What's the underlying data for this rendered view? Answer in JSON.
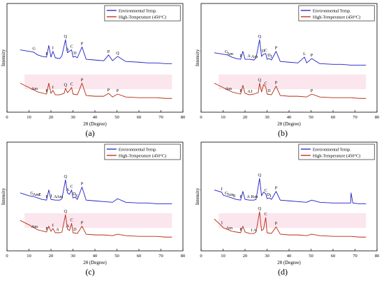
{
  "figure": {
    "x_axis_label": "2θ (Degree)",
    "y_axis_label": "Intensity",
    "x_ticks": [
      0,
      10,
      20,
      30,
      40,
      50,
      60,
      70,
      80
    ],
    "colors": {
      "environmental": "#1f1fc8",
      "high_temperature": "#b8280f"
    }
  },
  "chart_data": [
    {
      "type": "line",
      "panel": "(a)",
      "xlabel": "2θ (Degree)",
      "ylabel": "Intensity",
      "xlim": [
        0,
        80
      ],
      "legend_placement": "top-right",
      "series": [
        {
          "name": "Environmental Temp.",
          "x": [
            6,
            10,
            12,
            14,
            16,
            18,
            19,
            20,
            20.9,
            22,
            24,
            25,
            26.6,
            27.5,
            28.4,
            29.4,
            30,
            31,
            32,
            34.1,
            36,
            40,
            44,
            46.2,
            48,
            50.3,
            54,
            60,
            64,
            68,
            72,
            75
          ],
          "values": [
            86,
            84,
            83,
            79,
            77,
            76,
            92,
            76,
            84,
            75,
            74,
            78,
            100,
            82,
            84,
            86,
            76,
            77,
            75,
            90,
            73,
            72,
            71,
            79,
            71,
            77,
            70,
            69,
            68,
            68,
            67,
            67
          ]
        },
        {
          "name": "High-Temperature (450°C)",
          "x": [
            6,
            10,
            14,
            18,
            19,
            20,
            20.9,
            22,
            24,
            26,
            26.6,
            27.5,
            28.4,
            29.4,
            30,
            32,
            34.1,
            36,
            40,
            44,
            46.2,
            48,
            50.3,
            54,
            60,
            68,
            72,
            75
          ],
          "values": [
            40,
            34,
            28,
            25,
            40,
            26,
            30,
            24,
            24,
            26,
            33,
            27,
            30,
            34,
            25,
            24,
            40,
            23,
            22,
            22,
            26,
            21,
            25,
            21,
            20,
            20,
            19,
            19
          ]
        }
      ],
      "annotations": [
        {
          "label": "G",
          "x": 12.3,
          "series": 0
        },
        {
          "label": "P",
          "x": 18.1,
          "series": 0
        },
        {
          "label": "I",
          "x": 20.9,
          "series": 0
        },
        {
          "label": "Q",
          "x": 26.6,
          "series": 0
        },
        {
          "label": "A",
          "x": 27.5,
          "series": 0
        },
        {
          "label": "C",
          "x": 29.4,
          "series": 0
        },
        {
          "label": "D",
          "x": 30.9,
          "series": 0
        },
        {
          "label": "P",
          "x": 34.1,
          "series": 0
        },
        {
          "label": "P",
          "x": 46.2,
          "series": 0
        },
        {
          "label": "Q",
          "x": 50.3,
          "series": 0
        },
        {
          "label": "Am",
          "x": 12.5,
          "series": 1
        },
        {
          "label": "P",
          "x": 18.1,
          "series": 1
        },
        {
          "label": "I",
          "x": 20.9,
          "series": 1
        },
        {
          "label": "Q",
          "x": 26.6,
          "series": 1
        },
        {
          "label": "C",
          "x": 29.4,
          "series": 1
        },
        {
          "label": "P",
          "x": 34.1,
          "series": 1
        },
        {
          "label": "P",
          "x": 46.2,
          "series": 1
        },
        {
          "label": "P",
          "x": 50.3,
          "series": 1
        }
      ]
    },
    {
      "type": "line",
      "panel": "(b)",
      "xlabel": "2θ (Degree)",
      "ylabel": "Intensity",
      "xlim": [
        0,
        80
      ],
      "legend_placement": "top-right",
      "series": [
        {
          "name": "Environmental Temp.",
          "x": [
            6,
            10,
            12,
            14,
            16,
            18,
            19,
            20,
            22,
            24,
            25,
            26.6,
            27.5,
            28.4,
            29.4,
            30,
            31,
            32,
            34.1,
            36,
            40,
            44,
            47,
            48,
            50.3,
            54,
            60,
            64,
            68,
            72,
            75
          ],
          "values": [
            82,
            80,
            79,
            76,
            74,
            73,
            84,
            73,
            73,
            72,
            75,
            100,
            77,
            80,
            81,
            73,
            74,
            72,
            84,
            70,
            69,
            68,
            76,
            68,
            74,
            67,
            66,
            66,
            65,
            65,
            65
          ]
        },
        {
          "name": "High-Temperature (450°C)",
          "x": [
            6,
            10,
            14,
            18,
            19,
            20,
            22,
            24,
            26,
            26.6,
            27.5,
            28.4,
            29.4,
            30,
            32,
            34.1,
            36,
            40,
            44,
            48,
            50.3,
            54,
            60,
            68,
            72,
            75
          ],
          "values": [
            40,
            34,
            28,
            25,
            37,
            26,
            24,
            25,
            27,
            40,
            28,
            38,
            35,
            25,
            24,
            36,
            23,
            22,
            22,
            21,
            25,
            21,
            20,
            20,
            19,
            19
          ]
        }
      ],
      "annotations": [
        {
          "label": "G",
          "x": 11.5,
          "series": 0
        },
        {
          "label": "Am",
          "x": 13.2,
          "series": 0
        },
        {
          "label": "P",
          "x": 18.1,
          "series": 0
        },
        {
          "label": "A",
          "x": 21.8,
          "series": 0
        },
        {
          "label": "Am",
          "x": 24.3,
          "series": 0
        },
        {
          "label": "Q",
          "x": 26.6,
          "series": 0
        },
        {
          "label": "D",
          "x": 28.3,
          "series": 0
        },
        {
          "label": "C",
          "x": 29.4,
          "series": 0
        },
        {
          "label": "D",
          "x": 30.9,
          "series": 0
        },
        {
          "label": "I",
          "x": 32.0,
          "series": 0
        },
        {
          "label": "P",
          "x": 34.1,
          "series": 0
        },
        {
          "label": "L",
          "x": 47.0,
          "series": 0
        },
        {
          "label": "P",
          "x": 50.3,
          "series": 0
        },
        {
          "label": "Am",
          "x": 12.5,
          "series": 1
        },
        {
          "label": "P",
          "x": 18.1,
          "series": 1
        },
        {
          "label": "A",
          "x": 21.8,
          "series": 1
        },
        {
          "label": "I",
          "x": 23.0,
          "series": 1
        },
        {
          "label": "Q",
          "x": 26.6,
          "series": 1
        },
        {
          "label": "C",
          "x": 29.4,
          "series": 1
        },
        {
          "label": "D",
          "x": 30.9,
          "series": 1
        },
        {
          "label": "P",
          "x": 34.1,
          "series": 1
        },
        {
          "label": "P",
          "x": 50.3,
          "series": 1
        }
      ]
    },
    {
      "type": "line",
      "panel": "(c)",
      "xlabel": "2θ (Degree)",
      "ylabel": "Intensity",
      "xlim": [
        0,
        80
      ],
      "legend_placement": "top-right",
      "series": [
        {
          "name": "Environmental Temp.",
          "x": [
            6,
            10,
            12,
            14,
            16,
            18,
            19,
            20,
            22,
            24,
            25,
            26.6,
            27.5,
            28.4,
            29.4,
            30,
            31,
            32,
            34.1,
            36,
            40,
            44,
            48,
            50.3,
            54,
            60,
            64,
            68,
            72,
            75
          ],
          "values": [
            80,
            76,
            75,
            73,
            71,
            70,
            84,
            71,
            70,
            70,
            72,
            98,
            80,
            78,
            84,
            73,
            74,
            71,
            88,
            70,
            69,
            68,
            67,
            72,
            67,
            66,
            66,
            65,
            65,
            65
          ]
        },
        {
          "name": "High-Temperature (450°C)",
          "x": [
            6,
            10,
            14,
            18,
            19,
            20,
            20.9,
            22,
            24,
            25,
            26.6,
            27.5,
            28.4,
            29.4,
            30,
            32,
            34.1,
            36,
            40,
            44,
            48,
            50.3,
            54,
            60,
            68,
            72,
            75
          ],
          "values": [
            42,
            36,
            29,
            26,
            34,
            27,
            31,
            25,
            25,
            26,
            50,
            30,
            28,
            38,
            25,
            24,
            34,
            23,
            22,
            22,
            21,
            23,
            21,
            20,
            20,
            19,
            19
          ]
        }
      ],
      "annotations": [
        {
          "label": "G",
          "x": 11.3,
          "series": 0
        },
        {
          "label": "Am",
          "x": 13.2,
          "series": 0
        },
        {
          "label": "E",
          "x": 15.0,
          "series": 0
        },
        {
          "label": "P",
          "x": 18.1,
          "series": 0
        },
        {
          "label": "I",
          "x": 20.2,
          "series": 0
        },
        {
          "label": "A",
          "x": 22.0,
          "series": 0
        },
        {
          "label": "Am",
          "x": 24.0,
          "series": 0
        },
        {
          "label": "Q",
          "x": 26.6,
          "series": 0
        },
        {
          "label": "A",
          "x": 27.6,
          "series": 0
        },
        {
          "label": "C",
          "x": 29.4,
          "series": 0
        },
        {
          "label": "D",
          "x": 30.6,
          "series": 0
        },
        {
          "label": "E",
          "x": 31.7,
          "series": 0
        },
        {
          "label": "P",
          "x": 34.1,
          "series": 0
        },
        {
          "label": "Am",
          "x": 12.5,
          "series": 1
        },
        {
          "label": "P",
          "x": 18.1,
          "series": 1
        },
        {
          "label": "I",
          "x": 20.9,
          "series": 1
        },
        {
          "label": "A",
          "x": 23.0,
          "series": 1
        },
        {
          "label": "Q",
          "x": 26.6,
          "series": 1
        },
        {
          "label": "A",
          "x": 27.6,
          "series": 1
        },
        {
          "label": "C",
          "x": 29.4,
          "series": 1
        },
        {
          "label": "D",
          "x": 30.9,
          "series": 1
        },
        {
          "label": "P",
          "x": 34.1,
          "series": 1
        }
      ]
    },
    {
      "type": "line",
      "panel": "(d)",
      "xlabel": "2θ (Degree)",
      "ylabel": "Intensity",
      "xlim": [
        0,
        80
      ],
      "legend_placement": "top-right",
      "series": [
        {
          "name": "Environmental Temp.",
          "x": [
            6,
            9.4,
            10,
            12,
            14,
            16,
            18,
            19,
            20,
            22,
            24,
            25,
            26.6,
            27.5,
            28.4,
            29.4,
            30,
            31,
            32,
            34.1,
            36,
            40,
            44,
            48,
            50.3,
            54,
            60,
            64,
            68,
            68.2,
            69,
            72,
            75
          ],
          "values": [
            84,
            81,
            77,
            75,
            73,
            71,
            70,
            82,
            71,
            70,
            70,
            71,
            100,
            76,
            81,
            79,
            72,
            73,
            71,
            82,
            70,
            69,
            68,
            67,
            70,
            67,
            66,
            66,
            66,
            80,
            66,
            65,
            65
          ]
        },
        {
          "name": "High-Temperature (450°C)",
          "x": [
            6,
            9.5,
            10,
            14,
            18,
            19,
            20,
            22,
            24,
            25,
            26.6,
            27.5,
            28.4,
            29.4,
            30,
            32,
            34.1,
            36,
            40,
            44,
            48,
            50.3,
            54,
            60,
            68,
            72,
            75
          ],
          "values": [
            44,
            34,
            32,
            27,
            25,
            34,
            26,
            24,
            24,
            26,
            54,
            28,
            30,
            46,
            25,
            24,
            33,
            23,
            22,
            22,
            21,
            23,
            21,
            20,
            20,
            19,
            19
          ]
        }
      ],
      "annotations": [
        {
          "label": "I",
          "x": 9.4,
          "series": 0
        },
        {
          "label": "G",
          "x": 11.5,
          "series": 0
        },
        {
          "label": "Am",
          "x": 13.3,
          "series": 0
        },
        {
          "label": "E",
          "x": 15.2,
          "series": 0
        },
        {
          "label": "P",
          "x": 18.1,
          "series": 0
        },
        {
          "label": "A",
          "x": 21.5,
          "series": 0
        },
        {
          "label": "I",
          "x": 23.0,
          "series": 0
        },
        {
          "label": "Am",
          "x": 24.4,
          "series": 0
        },
        {
          "label": "Q",
          "x": 26.6,
          "series": 0
        },
        {
          "label": "C",
          "x": 29.4,
          "series": 0
        },
        {
          "label": "D",
          "x": 30.6,
          "series": 0
        },
        {
          "label": "I",
          "x": 31.6,
          "series": 0
        },
        {
          "label": "P",
          "x": 34.1,
          "series": 0
        },
        {
          "label": "I",
          "x": 9.5,
          "series": 1
        },
        {
          "label": "Am",
          "x": 12.8,
          "series": 1
        },
        {
          "label": "P",
          "x": 18.1,
          "series": 1
        },
        {
          "label": "I",
          "x": 23.0,
          "series": 1
        },
        {
          "label": "A",
          "x": 24.5,
          "series": 1
        },
        {
          "label": "Q",
          "x": 26.6,
          "series": 1
        },
        {
          "label": "C",
          "x": 29.4,
          "series": 1
        },
        {
          "label": "P",
          "x": 34.1,
          "series": 1
        }
      ]
    }
  ]
}
